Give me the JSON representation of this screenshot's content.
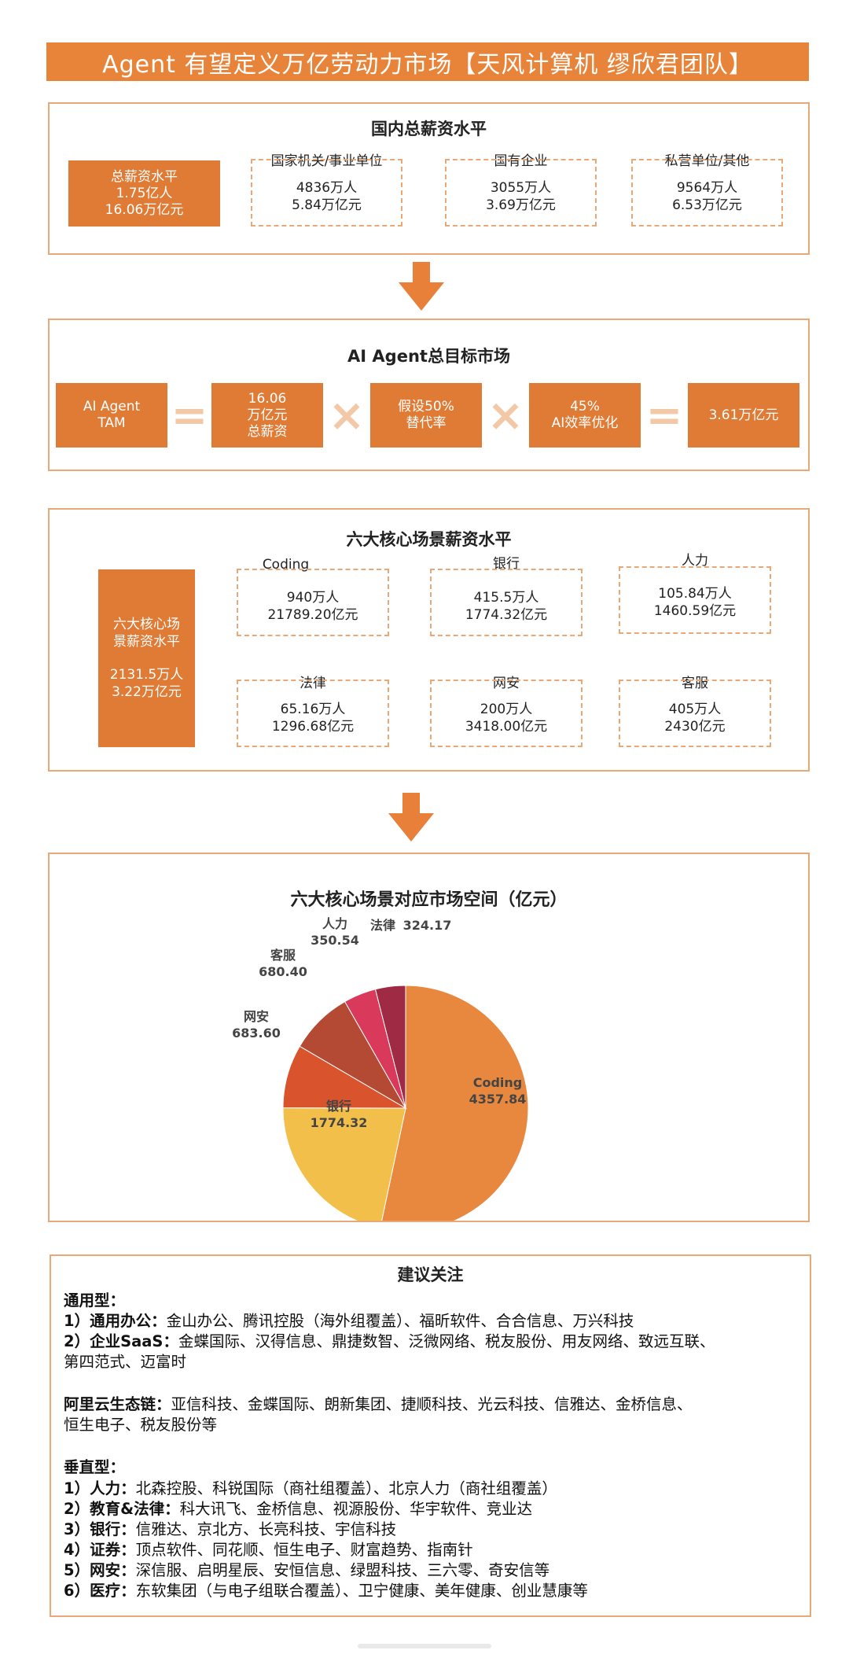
{
  "banner": {
    "title": "Agent 有望定义万亿劳动力市场【天风计算机 缪欣君团队】"
  },
  "domestic_salary": {
    "title": "国内总薪资水平",
    "total": {
      "label": "总薪资水平",
      "people": "1.75亿人",
      "salary": "16.06万亿元"
    },
    "categories": [
      {
        "label": "国家机关/事业单位",
        "people": "4836万人",
        "salary": "5.84万亿元"
      },
      {
        "label": "国有企业",
        "people": "3055万人",
        "salary": "3.69万亿元"
      },
      {
        "label": "私营单位/其他",
        "people": "9564万人",
        "salary": "6.53万亿元"
      }
    ]
  },
  "tam": {
    "title": "AI Agent总目标市场",
    "boxes": [
      {
        "line1": "AI Agent",
        "line2": "TAM",
        "line3": ""
      },
      {
        "line1": "16.06",
        "line2": "万亿元",
        "line3": "总薪资"
      },
      {
        "line1": "假设50%",
        "line2": "替代率",
        "line3": ""
      },
      {
        "line1": "45%",
        "line2": "AI效率优化",
        "line3": ""
      },
      {
        "line1": "3.61万亿元",
        "line2": "",
        "line3": ""
      }
    ],
    "operators": [
      "=",
      "×",
      "×",
      "="
    ]
  },
  "core_scenes": {
    "title": "六大核心场景薪资水平",
    "total": {
      "label1": "六大核心场",
      "label2": "景薪资水平",
      "people": "2131.5万人",
      "salary": "3.22万亿元"
    },
    "scenes": [
      {
        "label": "Coding",
        "people": "940万人",
        "salary": "21789.20亿元"
      },
      {
        "label": "银行",
        "people": "415.5万人",
        "salary": "1774.32亿元"
      },
      {
        "label": "人力",
        "people": "105.84万人",
        "salary": "1460.59亿元"
      },
      {
        "label": "法律",
        "people": "65.16万人",
        "salary": "1296.68亿元"
      },
      {
        "label": "网安",
        "people": "200万人",
        "salary": "3418.00亿元"
      },
      {
        "label": "客服",
        "people": "405万人",
        "salary": "2430亿元"
      }
    ]
  },
  "chart_data": {
    "type": "pie",
    "title": "六大核心场景对应市场空间（亿元）",
    "slices": [
      {
        "label": "Coding",
        "value": 4357.84,
        "color": "#e8883f"
      },
      {
        "label": "银行",
        "value": 1774.32,
        "color": "#f2c04a"
      },
      {
        "label": "网安",
        "value": 683.6,
        "color": "#d9532d"
      },
      {
        "label": "客服",
        "value": 680.4,
        "color": "#b44a33"
      },
      {
        "label": "人力",
        "value": 350.54,
        "color": "#d93a5c"
      },
      {
        "label": "法律",
        "value": 324.17,
        "color": "#9e2a44"
      }
    ],
    "value_labels": [
      "4357.84",
      "1774.32",
      "683.60",
      "680.40",
      "350.54",
      "324.17"
    ]
  },
  "advice": {
    "title": "建议关注",
    "general_heading": "通用型：",
    "general": [
      {
        "head": "1）通用办公：",
        "text": "金山办公、腾讯控股（海外组覆盖）、福昕软件、合合信息、万兴科技"
      },
      {
        "head": "2）企业SaaS：",
        "text": "金蝶国际、汉得信息、鼎捷数智、泛微网络、税友股份、用友网络、致远互联、"
      }
    ],
    "general_cont": "第四范式、迈富时",
    "alibaba_head": "阿里云生态链：",
    "alibaba_text": "亚信科技、金蝶国际、朗新集团、捷顺科技、光云科技、信雅达、金桥信息、",
    "alibaba_cont": "恒生电子、税友股份等",
    "vertical_heading": "垂直型：",
    "vertical": [
      {
        "head": "1）人力：",
        "text": "北森控股、科锐国际（商社组覆盖）、北京人力（商社组覆盖）"
      },
      {
        "head": "2）教育&法律：",
        "text": "科大讯飞、金桥信息、视源股份、华宇软件、竞业达"
      },
      {
        "head": "3）银行：",
        "text": "信雅达、京北方、长亮科技、宇信科技"
      },
      {
        "head": "4）证券：",
        "text": "顶点软件、同花顺、恒生电子、财富趋势、指南针"
      },
      {
        "head": "5）网安：",
        "text": "深信服、启明星辰、安恒信息、绿盟科技、三六零、奇安信等"
      },
      {
        "head": "6）医疗：",
        "text": "东软集团（与电子组联合覆盖）、卫宁健康、美年健康、创业慧康等"
      }
    ]
  }
}
